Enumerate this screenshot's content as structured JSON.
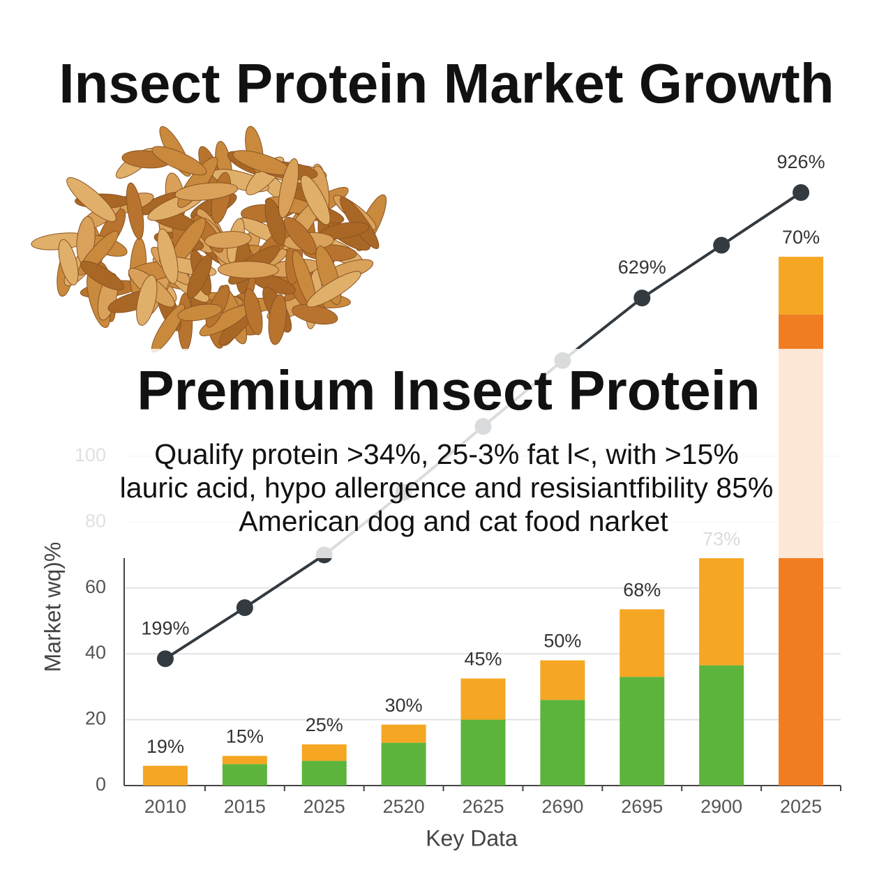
{
  "chart_data": {
    "type": "bar",
    "title": "Insect Protein Market Growth",
    "subtitle": "Premium Insect Protein",
    "annotations": [
      "Qualify protein >34%, 25-3% fat l<, with >15%",
      "lauric acid, hypo allergence and resisiantfibility 85%",
      "American dog and cat food narket"
    ],
    "x_label": "Key Data",
    "y_label": "Market wq)%",
    "categories": [
      "2010",
      "2015",
      "2025",
      "2520",
      "2625",
      "2690",
      "2695",
      "2900",
      "2025"
    ],
    "series": [
      {
        "color": "#5cb43c",
        "values": [
          0,
          6.5,
          7.5,
          13,
          20,
          26,
          33,
          36.5,
          0
        ]
      },
      {
        "color": "#f07d22",
        "values": [
          0,
          0,
          0,
          0,
          0,
          0,
          0,
          0,
          143
        ]
      },
      {
        "color": "#f5a623",
        "values": [
          6,
          2.5,
          5,
          5.5,
          12.5,
          12,
          20.5,
          32.5,
          17.5
        ]
      }
    ],
    "bar_labels": [
      "19%",
      "15%",
      "25%",
      "30%",
      "45%",
      "50%",
      "68%",
      "73%",
      "70%"
    ],
    "line": {
      "color": "#333a40",
      "values": [
        38.5,
        54,
        70,
        89,
        109,
        129,
        148,
        164,
        180
      ],
      "point_labels": [
        "199%",
        null,
        null,
        null,
        null,
        null,
        "629%",
        null,
        "926%"
      ]
    },
    "ylim": [
      0,
      180
    ],
    "yticks": [
      0,
      20,
      40,
      60,
      80,
      100
    ],
    "grid": true
  }
}
